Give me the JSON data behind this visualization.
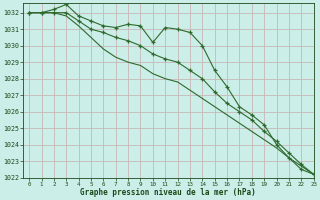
{
  "x": [
    0,
    1,
    2,
    3,
    4,
    5,
    6,
    7,
    8,
    9,
    10,
    11,
    12,
    13,
    14,
    15,
    16,
    17,
    18,
    19,
    20,
    21,
    22,
    23
  ],
  "line1": [
    1032.0,
    1032.0,
    1032.2,
    1032.5,
    1031.8,
    1031.5,
    1031.2,
    1031.1,
    1031.3,
    1031.2,
    1030.2,
    1031.1,
    1031.0,
    1030.8,
    1030.0,
    1028.5,
    1027.5,
    1026.3,
    1025.8,
    1025.2,
    1024.0,
    1023.2,
    1022.5,
    1022.2
  ],
  "line2": [
    1032.0,
    1032.0,
    1032.0,
    1032.0,
    1031.5,
    1031.0,
    1030.8,
    1030.5,
    1030.3,
    1030.0,
    1029.5,
    1029.2,
    1029.0,
    1028.5,
    1028.0,
    1027.2,
    1026.5,
    1026.0,
    1025.5,
    1024.8,
    1024.2,
    1023.5,
    1022.8,
    1022.2
  ],
  "line3": [
    1032.0,
    1032.0,
    1032.0,
    1031.8,
    1031.2,
    1030.5,
    1029.8,
    1029.3,
    1029.0,
    1028.8,
    1028.3,
    1028.0,
    1027.8,
    1027.3,
    1026.8,
    1026.3,
    1025.8,
    1025.3,
    1024.8,
    1024.3,
    1023.8,
    1023.2,
    1022.7,
    1022.2
  ],
  "line_color": "#2d6a2d",
  "bg_color": "#cceee8",
  "grid_color_v": "#c8b8b8",
  "grid_color_h": "#c8b8b8",
  "axis_color": "#1a4a1a",
  "xlabel": "Graphe pression niveau de la mer (hPa)",
  "ylim": [
    1022,
    1032.6
  ],
  "xlim": [
    -0.5,
    23
  ],
  "yticks": [
    1022,
    1023,
    1024,
    1025,
    1026,
    1027,
    1028,
    1029,
    1030,
    1031,
    1032
  ],
  "xticks": [
    0,
    1,
    2,
    3,
    4,
    5,
    6,
    7,
    8,
    9,
    10,
    11,
    12,
    13,
    14,
    15,
    16,
    17,
    18,
    19,
    20,
    21,
    22,
    23
  ]
}
